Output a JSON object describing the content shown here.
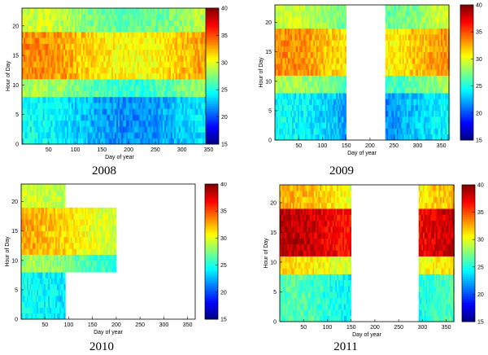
{
  "colormap": [
    "#00007f",
    "#0000ff",
    "#007fff",
    "#00ffff",
    "#7fff7f",
    "#ffff00",
    "#ff7f00",
    "#ff0000",
    "#7f0000"
  ],
  "chart_data": [
    {
      "type": "heatmap",
      "caption": "2008",
      "xlabel": "Day of year",
      "ylabel": "Hour of Day",
      "xlim": [
        0,
        366
      ],
      "ylim": [
        0,
        23
      ],
      "xticks": [
        50,
        100,
        150,
        200,
        250,
        300,
        350
      ],
      "yticks": [
        0,
        5,
        10,
        15,
        20
      ],
      "colorbar": {
        "range": [
          15,
          40
        ],
        "ticks": [
          15,
          20,
          25,
          30,
          35,
          40
        ]
      },
      "data_days": [
        [
          0,
          366
        ]
      ],
      "clip_days": [],
      "typical_values": {
        "night": 23,
        "morning": 27,
        "afternoon": 32,
        "evening": 28
      }
    },
    {
      "type": "heatmap",
      "caption": "2009",
      "xlabel": "Day of year",
      "ylabel": "Hour of Day",
      "xlim": [
        0,
        366
      ],
      "ylim": [
        0,
        23
      ],
      "xticks": [
        50,
        100,
        150,
        200,
        250,
        300,
        350
      ],
      "yticks": [
        0,
        5,
        10,
        15,
        20
      ],
      "colorbar": {
        "range": [
          15,
          40
        ],
        "ticks": [
          15,
          20,
          25,
          30,
          35,
          40
        ]
      },
      "data_days": [
        [
          0,
          150
        ],
        [
          232,
          366
        ]
      ],
      "clip_days": [],
      "typical_values": {
        "night": 23,
        "morning": 27,
        "afternoon": 32,
        "evening": 28
      }
    },
    {
      "type": "heatmap",
      "caption": "2010",
      "xlabel": "Day of year",
      "ylabel": "Hour of Day",
      "xlim": [
        0,
        366
      ],
      "ylim": [
        0,
        23
      ],
      "xticks": [
        50,
        100,
        150,
        200,
        250,
        300,
        350
      ],
      "yticks": [
        0,
        5,
        10,
        15,
        20
      ],
      "colorbar": {
        "range": [
          15,
          40
        ],
        "ticks": [
          15,
          20,
          25,
          30,
          35,
          40
        ]
      },
      "data_days": [
        [
          0,
          92
        ],
        [
          92,
          200
        ]
      ],
      "clip_days": [
        {
          "from": 92,
          "to": 200,
          "hour_min": 8,
          "hour_max": 18
        }
      ],
      "typical_values": {
        "night": 23,
        "morning": 27,
        "afternoon": 31,
        "evening": 28
      }
    },
    {
      "type": "heatmap",
      "caption": "2011",
      "xlabel": "Day of year",
      "ylabel": "Hour of Day",
      "xlim": [
        0,
        366
      ],
      "ylim": [
        0,
        23
      ],
      "xticks": [
        50,
        100,
        150,
        200,
        250,
        300,
        350
      ],
      "yticks": [
        0,
        5,
        10,
        15,
        20
      ],
      "colorbar": {
        "range": [
          15,
          40
        ],
        "ticks": [
          15,
          20,
          25,
          30,
          35,
          40
        ]
      },
      "data_days": [
        [
          0,
          150
        ],
        [
          292,
          366
        ]
      ],
      "clip_days": [],
      "typical_values": {
        "night": 25,
        "morning": 30,
        "afternoon": 37,
        "evening": 31
      }
    }
  ]
}
